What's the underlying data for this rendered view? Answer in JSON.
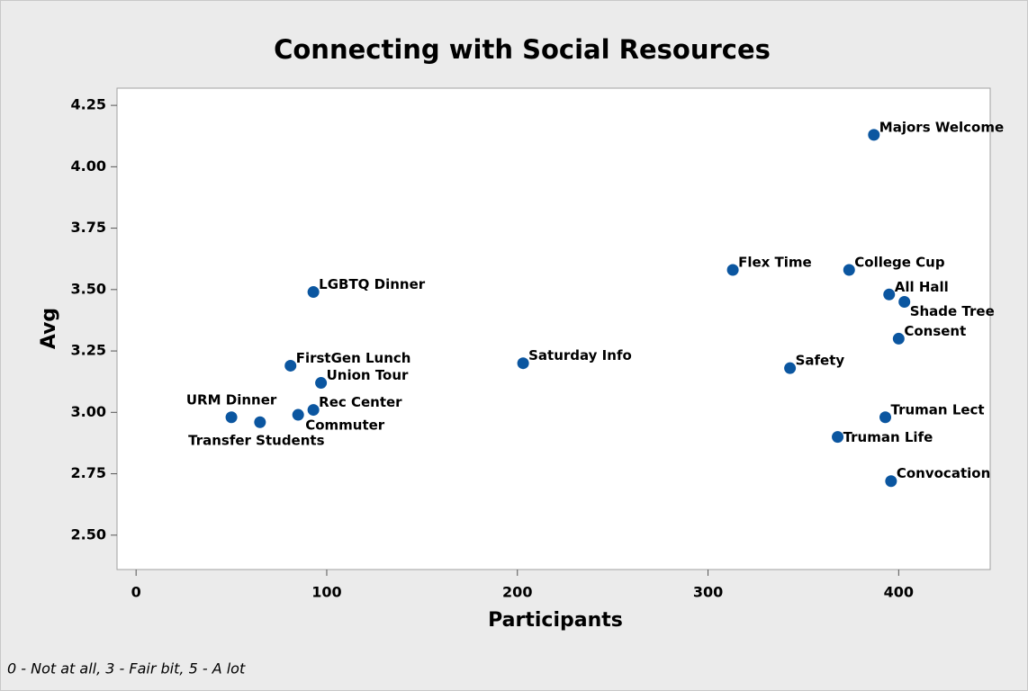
{
  "chart_data": {
    "type": "scatter",
    "title": "Connecting with Social Resources",
    "x_label": "Participants",
    "y_label": "Avg",
    "footnote": "0 - Not at all, 3 - Fair bit, 5 - A lot",
    "color": "#0b56a0",
    "labels": [
      "Majors Welcome",
      "Flex Time",
      "College Cup",
      "All Hall",
      "Shade Tree",
      "Consent",
      "Safety",
      "Truman Lect",
      "Truman Life",
      "Convocation",
      "Saturday Info",
      "LGBTQ Dinner",
      "FirstGen Lunch",
      "Union Tour",
      "Rec Center",
      "Commuter",
      "URM Dinner",
      "Transfer Students"
    ],
    "x": [
      387,
      313,
      374,
      395,
      403,
      400,
      343,
      393,
      368,
      396,
      203,
      93,
      81,
      97,
      93,
      85,
      50,
      65
    ],
    "y": [
      4.13,
      3.58,
      3.58,
      3.48,
      3.45,
      3.3,
      3.18,
      2.98,
      2.9,
      2.72,
      3.2,
      3.49,
      3.19,
      3.12,
      3.01,
      2.99,
      2.98,
      2.96
    ],
    "xlim": [
      -10,
      448
    ],
    "ylim": [
      2.36,
      4.32
    ],
    "xticks": [
      0,
      100,
      200,
      300,
      400
    ],
    "yticks": [
      4.25,
      {
        "value": 4,
        "label": "4.00"
      },
      3.75,
      {
        "value": 3.5,
        "label": "3.50"
      },
      3.25,
      {
        "value": 3,
        "label": "3.00"
      },
      2.75,
      {
        "value": 2.5,
        "label": "2.50"
      }
    ]
  }
}
